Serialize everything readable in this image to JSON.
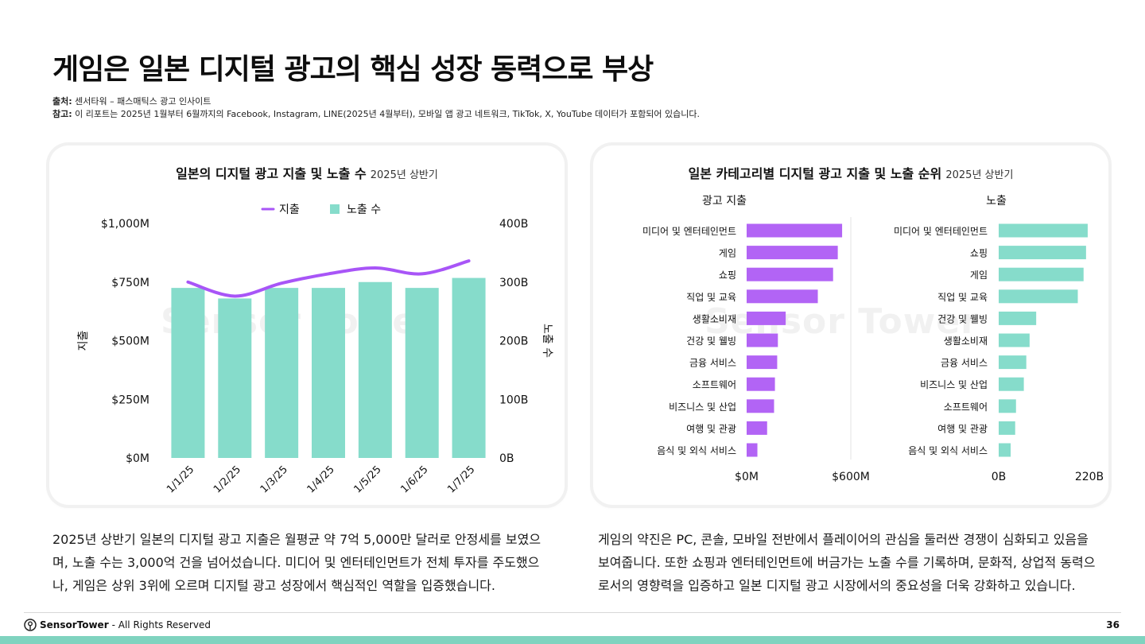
{
  "title": "게임은 일본 디지털 광고의 핵심 성장 동력으로 부상",
  "source": {
    "source_label": "출처:",
    "source_text": "센서타워 – 패스매틱스 광고 인사이트",
    "note_label": "참고:",
    "note_text": "이 리포트는 2025년 1월부터 6월까지의 Facebook, Instagram, LINE(2025년 4월부터), 모바일 앱 광고 네트워크, TikTok, X, YouTube 데이터가 포함되어 있습니다."
  },
  "left_card": {
    "title_strong": "일본의 디지털 광고 지출 및 노출 수",
    "title_sub": "2025년 상반기",
    "watermark": "Sensor Tower"
  },
  "right_card": {
    "title_strong": "일본 카테고리별 디지털 광고 지출 및 노출 순위",
    "title_sub": "2025년 상반기",
    "watermark": "Sensor Tower"
  },
  "colors": {
    "spend": "#a855f7",
    "impressions": "#86dccb",
    "bar_spend": "#b264f5",
    "bar_impr": "#86dccb"
  },
  "chart_data": [
    {
      "type": "bar+line",
      "title": "일본의 디지털 광고 지출 및 노출 수 2025년 상반기",
      "categories": [
        "1/1/25",
        "1/2/25",
        "1/3/25",
        "1/4/25",
        "1/5/25",
        "1/6/25",
        "1/7/25"
      ],
      "legend": {
        "line": "지출",
        "bar": "노출 수"
      },
      "series": [
        {
          "name": "지출",
          "type": "line",
          "axis": "left",
          "values": [
            750,
            690,
            745,
            785,
            810,
            785,
            840
          ]
        },
        {
          "name": "노출 수",
          "type": "bar",
          "axis": "right",
          "values": [
            290,
            272,
            290,
            290,
            300,
            290,
            307
          ]
        }
      ],
      "ylabel_left": "지출",
      "ylabel_right": "노출 수",
      "ylim_left": [
        0,
        1000
      ],
      "ylim_right": [
        0,
        400
      ],
      "yticks_left": [
        "$0M",
        "$250M",
        "$500M",
        "$750M",
        "$1,000M"
      ],
      "yticks_right": [
        "0B",
        "100B",
        "200B",
        "300B",
        "400B"
      ]
    },
    {
      "type": "bar",
      "orientation": "horizontal",
      "title": "광고 지출",
      "categories": [
        "미디어 및 엔터테인먼트",
        "게임",
        "쇼핑",
        "직업 및 교육",
        "생활소비재",
        "건강 및 웰빙",
        "금융 서비스",
        "소프트웨어",
        "비즈니스 및 산업",
        "여행 및 관광",
        "음식 및 외식 서비스"
      ],
      "values": [
        550,
        525,
        498,
        410,
        225,
        180,
        176,
        163,
        158,
        118,
        62
      ],
      "xlim": [
        0,
        600
      ],
      "xticks": [
        "$0M",
        "$600M"
      ]
    },
    {
      "type": "bar",
      "orientation": "horizontal",
      "title": "노출",
      "categories": [
        "미디어 및 엔터테인먼트",
        "쇼핑",
        "게임",
        "직업 및 교육",
        "건강 및 웰빙",
        "생활소비재",
        "금융 서비스",
        "비즈니스 및 산업",
        "소프트웨어",
        "여행 및 관광",
        "음식 및 외식 서비스"
      ],
      "values": [
        216,
        212,
        206,
        192,
        91,
        75,
        67,
        61,
        42,
        40,
        29
      ],
      "xlim": [
        0,
        220
      ],
      "xticks": [
        "0B",
        "220B"
      ]
    }
  ],
  "body": {
    "left": "2025년 상반기 일본의 디지털 광고 지출은 월평균 약 7억 5,000만 달러로 안정세를 보였으며, 노출 수는 3,000억 건을 넘어섰습니다. 미디어 및 엔터테인먼트가 전체 투자를 주도했으나, 게임은 상위 3위에 오르며 디지털 광고 성장에서 핵심적인 역할을 입증했습니다.",
    "right": "게임의 약진은 PC, 콘솔, 모바일 전반에서 플레이어의 관심을 둘러싼 경쟁이 심화되고 있음을 보여줍니다. 또한 쇼핑과 엔터테인먼트에 버금가는 노출 수를 기록하며, 문화적, 상업적 동력으로서의 영향력을 입증하고 일본 디지털 광고 시장에서의 중요성을 더욱 강화하고 있습니다."
  },
  "footer": {
    "brand": "SensorTower",
    "rights": "- All Rights Reserved",
    "page": "36"
  }
}
